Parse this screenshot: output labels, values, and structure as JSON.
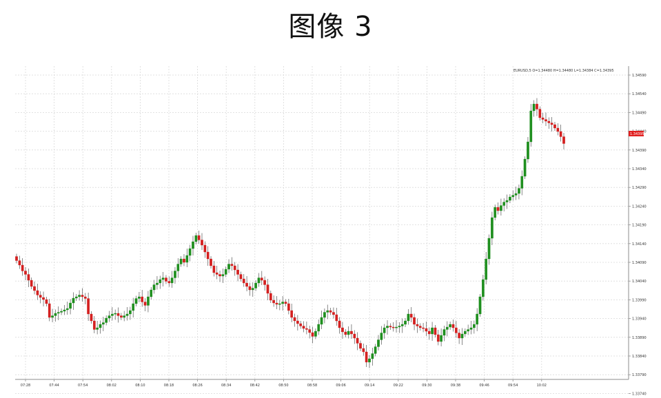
{
  "page": {
    "title": "图像 3"
  },
  "chart_data": {
    "type": "candlestick",
    "title": "图像 3",
    "info_text": "EURUSD,5 O=1.34480 H=1.34480 L=1.34384 C=1.34395",
    "current_price": "1.34395",
    "x_ticks": [
      "07:28",
      "07:44",
      "07:54",
      "08:02",
      "08:10",
      "08:18",
      "08:26",
      "08:34",
      "08:42",
      "08:50",
      "08:58",
      "09:06",
      "09:14",
      "09:22",
      "09:30",
      "09:38",
      "09:46",
      "09:54",
      "10:02"
    ],
    "y_ticks": [
      "1.34590",
      "1.34540",
      "1.34490",
      "1.34440",
      "1.34390",
      "1.34340",
      "1.34290",
      "1.34240",
      "1.34190",
      "1.34140",
      "1.34090",
      "1.34040",
      "1.33990",
      "1.33940",
      "1.33890",
      "1.33840",
      "1.33790",
      "1.33740"
    ],
    "ylim": [
      1.3371,
      1.3462
    ],
    "grid": true,
    "colors": {
      "up": "#1f8f1f",
      "down": "#d42020",
      "grid": "#d9d9d9",
      "axis": "#8c8c8c",
      "current_label": "#e02020"
    },
    "closes": [
      1.34055,
      1.34042,
      1.34025,
      1.34015,
      1.33998,
      1.3398,
      1.33968,
      1.33955,
      1.33948,
      1.33942,
      1.3393,
      1.3389,
      1.33895,
      1.33902,
      1.33905,
      1.33908,
      1.33912,
      1.33916,
      1.33932,
      1.33946,
      1.3395,
      1.33955,
      1.3395,
      1.33945,
      1.339,
      1.3388,
      1.33855,
      1.3386,
      1.3387,
      1.33875,
      1.33888,
      1.33895,
      1.339,
      1.33902,
      1.33895,
      1.3389,
      1.33895,
      1.339,
      1.3391,
      1.3393,
      1.33945,
      1.3395,
      1.33935,
      1.33925,
      1.3395,
      1.3397,
      1.33985,
      1.3399,
      1.34,
      1.34005,
      1.33995,
      1.3399,
      1.34005,
      1.34025,
      1.34045,
      1.3406,
      1.3405,
      1.3407,
      1.3409,
      1.3411,
      1.34128,
      1.34115,
      1.341,
      1.3408,
      1.3406,
      1.3404,
      1.3402,
      1.34015,
      1.3401,
      1.34015,
      1.3403,
      1.34045,
      1.3404,
      1.34028,
      1.34015,
      1.34002,
      1.3399,
      1.3398,
      1.3397,
      1.33975,
      1.3399,
      1.34005,
      1.33998,
      1.33985,
      1.3396,
      1.3394,
      1.33932,
      1.33928,
      1.3393,
      1.33935,
      1.3393,
      1.3391,
      1.3389,
      1.3388,
      1.33872,
      1.33865,
      1.33858,
      1.33855,
      1.33846,
      1.33835,
      1.3385,
      1.3387,
      1.3389,
      1.33905,
      1.3391,
      1.33905,
      1.33898,
      1.3388,
      1.3386,
      1.33848,
      1.3384,
      1.3385,
      1.33842,
      1.3383,
      1.33815,
      1.338,
      1.3379,
      1.3376,
      1.3377,
      1.33785,
      1.33805,
      1.33825,
      1.33845,
      1.3386,
      1.33865,
      1.33862,
      1.3386,
      1.33862,
      1.33865,
      1.3387,
      1.3388,
      1.339,
      1.3389,
      1.3387,
      1.33865,
      1.3386,
      1.33858,
      1.3385,
      1.33842,
      1.3386,
      1.3384,
      1.3382,
      1.33838,
      1.33855,
      1.33862,
      1.3387,
      1.3386,
      1.33845,
      1.3383,
      1.33842,
      1.3385,
      1.33855,
      1.3386,
      1.3387,
      1.339,
      1.3395,
      1.34,
      1.3406,
      1.3412,
      1.3418,
      1.3421,
      1.342,
      1.34215,
      1.34225,
      1.3423,
      1.3424,
      1.34245,
      1.3425,
      1.34265,
      1.343,
      1.3435,
      1.344,
      1.3449,
      1.3451,
      1.34495,
      1.3447,
      1.34465,
      1.3446,
      1.34455,
      1.3445,
      1.3444,
      1.3443,
      1.34415,
      1.34395
    ]
  }
}
